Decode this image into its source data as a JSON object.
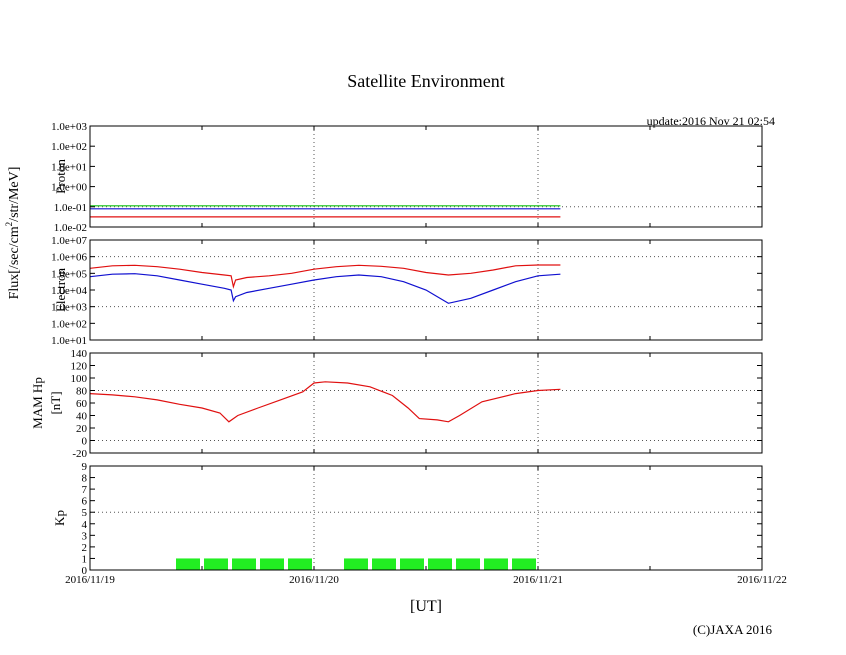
{
  "title": "Satellite Environment",
  "update_label": "update:2016 Nov 21 02:54",
  "copyright": "(C)JAXA 2016",
  "flux_label": "Flux[/sec/cm",
  "flux_label_sup": "2",
  "flux_label_rest": "/str/MeV]",
  "chart_data": {
    "type": "line",
    "x_axis": {
      "label": "[UT]",
      "ticks": [
        "2016/11/19",
        "2016/11/20",
        "2016/11/21",
        "2016/11/22"
      ],
      "range_days": [
        0,
        3
      ]
    },
    "colors": {
      "red": "#e01010",
      "blue": "#1010d0",
      "green": "#10c010",
      "kp": "#22ee22"
    },
    "panels": [
      {
        "id": "proton",
        "ylabel": "Proton",
        "scale": "log",
        "ylim_exp": [
          -2,
          3
        ],
        "tick_labels": [
          "1.0e-02",
          "1.0e-01",
          "1.0e+00",
          "1.0e+01",
          "1.0e+02",
          "1.0e+03"
        ],
        "grid_at": [
          -1
        ],
        "series": [
          {
            "color": "red",
            "x": [
              0,
              2.1
            ],
            "y_exp": [
              -1.5,
              -1.5
            ]
          },
          {
            "color": "blue",
            "x": [
              0,
              2.1
            ],
            "y_exp": [
              -1.1,
              -1.1
            ]
          },
          {
            "color": "green",
            "x": [
              0,
              2.1
            ],
            "y_exp": [
              -0.95,
              -0.95
            ]
          }
        ]
      },
      {
        "id": "electron",
        "ylabel": "Electron",
        "scale": "log",
        "ylim_exp": [
          1,
          7
        ],
        "tick_labels": [
          "1.0e+01",
          "1.0e+02",
          "1.0e+03",
          "1.0e+04",
          "1.0e+05",
          "1.0e+06",
          "1.0e+07"
        ],
        "grid_at": [
          3,
          6
        ],
        "series": [
          {
            "color": "red",
            "x": [
              0,
              0.1,
              0.2,
              0.3,
              0.4,
              0.5,
              0.6,
              0.63,
              0.64,
              0.65,
              0.7,
              0.8,
              0.9,
              1.0,
              1.1,
              1.2,
              1.3,
              1.4,
              1.5,
              1.6,
              1.7,
              1.8,
              1.9,
              2.0,
              2.1
            ],
            "y_exp": [
              5.3,
              5.45,
              5.48,
              5.4,
              5.25,
              5.05,
              4.9,
              4.85,
              4.2,
              4.6,
              4.75,
              4.85,
              5.0,
              5.25,
              5.4,
              5.48,
              5.42,
              5.3,
              5.05,
              4.9,
              5.0,
              5.2,
              5.45,
              5.5,
              5.5
            ]
          },
          {
            "color": "blue",
            "x": [
              0,
              0.1,
              0.2,
              0.3,
              0.4,
              0.5,
              0.6,
              0.63,
              0.64,
              0.65,
              0.7,
              0.8,
              0.9,
              1.0,
              1.1,
              1.2,
              1.3,
              1.4,
              1.5,
              1.6,
              1.7,
              1.8,
              1.9,
              2.0,
              2.1
            ],
            "y_exp": [
              4.8,
              4.95,
              4.98,
              4.85,
              4.6,
              4.35,
              4.1,
              4.0,
              3.35,
              3.6,
              3.85,
              4.1,
              4.35,
              4.6,
              4.8,
              4.9,
              4.8,
              4.5,
              4.0,
              3.2,
              3.5,
              4.0,
              4.5,
              4.85,
              4.95
            ]
          }
        ]
      },
      {
        "id": "mam",
        "ylabel": "MAM Hp",
        "ylabel2": "[nT]",
        "scale": "linear",
        "ylim": [
          -20,
          140
        ],
        "tick_labels": [
          "-20",
          "0",
          "20",
          "40",
          "60",
          "80",
          "100",
          "120",
          "140"
        ],
        "grid_at": [
          0,
          80
        ],
        "series": [
          {
            "color": "red",
            "x": [
              0,
              0.1,
              0.2,
              0.3,
              0.4,
              0.5,
              0.58,
              0.62,
              0.66,
              0.75,
              0.85,
              0.95,
              1.0,
              1.05,
              1.15,
              1.25,
              1.35,
              1.42,
              1.47,
              1.55,
              1.6,
              1.65,
              1.75,
              1.9,
              2.0,
              2.1
            ],
            "y": [
              75,
              73,
              70,
              65,
              58,
              52,
              44,
              30,
              40,
              52,
              65,
              78,
              92,
              94,
              92,
              86,
              72,
              52,
              35,
              33,
              30,
              40,
              62,
              75,
              80,
              82
            ]
          }
        ]
      },
      {
        "id": "kp",
        "ylabel": "Kp",
        "scale": "linear",
        "ylim": [
          0,
          9
        ],
        "tick_labels": [
          "0",
          "1",
          "2",
          "3",
          "4",
          "5",
          "6",
          "7",
          "8",
          "9"
        ],
        "grid_at": [
          5
        ],
        "bars": {
          "x_start": [
            0.375,
            0.5,
            0.625,
            0.75,
            0.875,
            1.125,
            1.25,
            1.375,
            1.5,
            1.625,
            1.75,
            1.875
          ],
          "width": 0.125,
          "values": [
            1,
            1,
            1,
            1,
            1,
            1,
            1,
            1,
            1,
            1,
            1,
            1
          ]
        }
      }
    ]
  }
}
